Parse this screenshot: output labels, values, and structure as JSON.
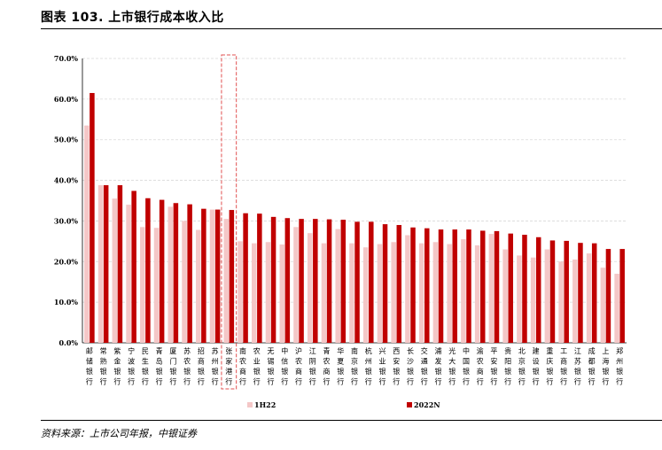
{
  "header": {
    "title": "图表 103. 上市银行成本收入比"
  },
  "footer": {
    "source": "资料来源：上市公司年报，中银证券"
  },
  "colors": {
    "series_1h22": "#f4c7c7",
    "series_2022n": "#c00000",
    "highlight_box": "#e05050"
  },
  "chart_data": {
    "type": "bar",
    "title": "",
    "xlabel": "",
    "ylabel": "",
    "ylim": [
      0,
      70
    ],
    "y_ticks": [
      "0.0%",
      "10.0%",
      "20.0%",
      "30.0%",
      "40.0%",
      "50.0%",
      "60.0%",
      "70.0%"
    ],
    "grid": true,
    "legend_position": "bottom",
    "highlight_category": "张家港行",
    "categories": [
      "邮储银行",
      "常熟银行",
      "紫金银行",
      "宁波银行",
      "民生银行",
      "青岛银行",
      "厦门银行",
      "苏农银行",
      "招商银行",
      "苏州银行",
      "张家港行",
      "南农商行",
      "农业银行",
      "无锡银行",
      "中信银行",
      "沪农商行",
      "江阴银行",
      "青农商行",
      "华夏银行",
      "南京银行",
      "杭州银行",
      "兴业银行",
      "西安银行",
      "长沙银行",
      "交通银行",
      "浦发银行",
      "光大银行",
      "中国银行",
      "渝农商行",
      "平安银行",
      "贵阳银行",
      "北京银行",
      "建设银行",
      "重庆银行",
      "工商银行",
      "江苏银行",
      "成都银行",
      "上海银行",
      "郑州银行"
    ],
    "series": [
      {
        "name": "1H22",
        "values": [
          53.5,
          38.8,
          35.5,
          34.0,
          28.5,
          28.3,
          33.5,
          30.0,
          27.8,
          32.8,
          30.5,
          25.0,
          24.5,
          24.8,
          24.2,
          28.5,
          27.0,
          24.5,
          28.0,
          24.5,
          23.5,
          24.3,
          24.8,
          26.5,
          24.5,
          24.8,
          24.3,
          25.5,
          24.0,
          26.8,
          23.0,
          21.5,
          21.0,
          23.0,
          20.0,
          20.5,
          22.0,
          18.5,
          17.0
        ]
      },
      {
        "name": "2022N",
        "values": [
          61.5,
          38.8,
          38.8,
          37.4,
          35.6,
          35.2,
          34.4,
          34.1,
          33.0,
          32.8,
          32.7,
          31.9,
          31.8,
          31.0,
          30.7,
          30.5,
          30.5,
          30.4,
          30.3,
          29.8,
          29.8,
          29.2,
          29.0,
          28.4,
          28.2,
          27.9,
          27.9,
          27.9,
          27.6,
          27.5,
          26.9,
          26.6,
          26.0,
          25.2,
          25.1,
          24.6,
          24.5,
          23.1,
          23.1
        ]
      }
    ]
  }
}
